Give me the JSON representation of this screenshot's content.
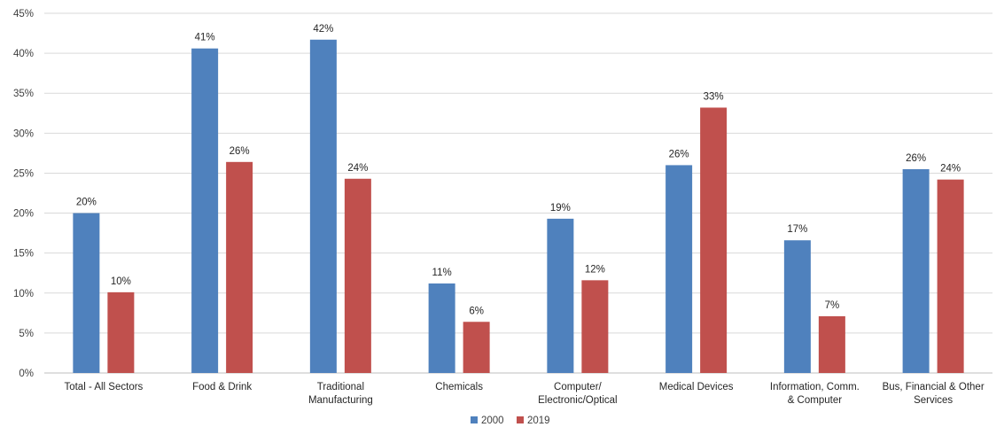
{
  "chart_data": {
    "type": "bar",
    "title": "",
    "xlabel": "",
    "ylabel": "",
    "ylim": [
      0,
      45
    ],
    "yticks": [
      "0%",
      "5%",
      "10%",
      "15%",
      "20%",
      "25%",
      "30%",
      "35%",
      "40%",
      "45%"
    ],
    "grid": true,
    "legend_position": "bottom",
    "categories": [
      [
        "Total - All Sectors"
      ],
      [
        "Food & Drink"
      ],
      [
        "Traditional",
        "Manufacturing"
      ],
      [
        "Chemicals"
      ],
      [
        "Computer/",
        "Electronic/Optical"
      ],
      [
        "Medical Devices"
      ],
      [
        "Information, Comm.",
        "& Computer"
      ],
      [
        "Bus, Financial & Other",
        "Services"
      ]
    ],
    "series": [
      {
        "name": "2000",
        "color": "#4F81BD",
        "values": [
          20.0,
          40.6,
          41.7,
          11.2,
          19.3,
          26.0,
          16.6,
          25.5
        ],
        "labels": [
          "20%",
          "41%",
          "42%",
          "11%",
          "19%",
          "26%",
          "17%",
          "26%"
        ]
      },
      {
        "name": "2019",
        "color": "#C0504D",
        "values": [
          10.1,
          26.4,
          24.3,
          6.4,
          11.6,
          33.2,
          7.1,
          24.2
        ],
        "labels": [
          "10%",
          "26%",
          "24%",
          "6%",
          "12%",
          "33%",
          "7%",
          "24%"
        ]
      }
    ]
  }
}
